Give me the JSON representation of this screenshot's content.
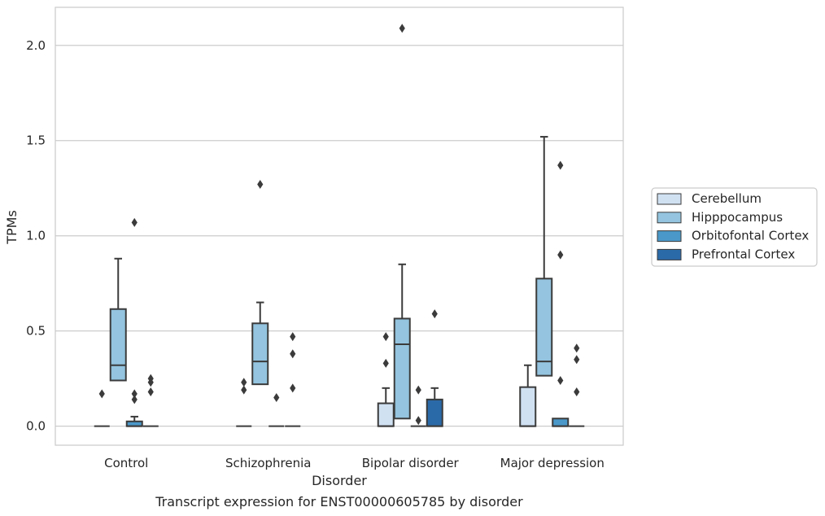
{
  "chart_data": {
    "type": "box",
    "caption": "Transcript expression for ENST00000605785 by disorder",
    "xlabel": "Disorder",
    "ylabel": "TPMs",
    "ylim": [
      -0.1,
      2.2
    ],
    "yticks": [
      0.0,
      0.5,
      1.0,
      1.5,
      2.0
    ],
    "ytick_labels": [
      "0.0",
      "0.5",
      "1.0",
      "1.5",
      "2.0"
    ],
    "grid": "horizontal",
    "legend_position": "right",
    "categories": [
      "Control",
      "Schizophrenia",
      "Bipolar disorder",
      "Major depression"
    ],
    "series": [
      {
        "name": "Cerebellum",
        "color": "#d0e1f2",
        "boxes": [
          {
            "q1": 0,
            "median": 0,
            "q3": 0,
            "whisker_low": 0,
            "whisker_high": 0,
            "outliers": [
              0.17
            ]
          },
          {
            "q1": 0,
            "median": 0,
            "q3": 0,
            "whisker_low": 0,
            "whisker_high": 0,
            "outliers": [
              0.23,
              0.19
            ]
          },
          {
            "q1": 0,
            "median": 0,
            "q3": 0.12,
            "whisker_low": 0,
            "whisker_high": 0.2,
            "outliers": [
              0.47,
              0.33
            ]
          },
          {
            "q1": 0,
            "median": 0,
            "q3": 0.205,
            "whisker_low": 0,
            "whisker_high": 0.32,
            "outliers": []
          }
        ]
      },
      {
        "name": "Hipppocampus",
        "color": "#94c4df",
        "boxes": [
          {
            "q1": 0.24,
            "median": 0.32,
            "q3": 0.615,
            "whisker_low": 0,
            "whisker_high": 0.88,
            "outliers": []
          },
          {
            "q1": 0.22,
            "median": 0.34,
            "q3": 0.54,
            "whisker_low": 0,
            "whisker_high": 0.65,
            "outliers": [
              1.27
            ]
          },
          {
            "q1": 0.04,
            "median": 0.43,
            "q3": 0.565,
            "whisker_low": 0,
            "whisker_high": 0.85,
            "outliers": [
              2.09
            ]
          },
          {
            "q1": 0.265,
            "median": 0.34,
            "q3": 0.775,
            "whisker_low": 0,
            "whisker_high": 1.52,
            "outliers": []
          }
        ]
      },
      {
        "name": "Orbitofontal Cortex",
        "color": "#4a98c9",
        "boxes": [
          {
            "q1": 0,
            "median": 0,
            "q3": 0.025,
            "whisker_low": 0,
            "whisker_high": 0.05,
            "outliers": [
              1.07,
              0.17,
              0.14
            ]
          },
          {
            "q1": 0,
            "median": 0,
            "q3": 0,
            "whisker_low": 0,
            "whisker_high": 0,
            "outliers": [
              0.15
            ]
          },
          {
            "q1": 0,
            "median": 0,
            "q3": 0,
            "whisker_low": 0,
            "whisker_high": 0,
            "outliers": [
              0.19,
              0.03
            ]
          },
          {
            "q1": 0,
            "median": 0,
            "q3": 0.04,
            "whisker_low": 0,
            "whisker_high": 0.04,
            "outliers": [
              1.37,
              0.9,
              0.24
            ]
          }
        ]
      },
      {
        "name": "Prefrontal Cortex",
        "color": "#2b6aa8",
        "boxes": [
          {
            "q1": 0,
            "median": 0,
            "q3": 0,
            "whisker_low": 0,
            "whisker_high": 0,
            "outliers": [
              0.25,
              0.23,
              0.18
            ]
          },
          {
            "q1": 0,
            "median": 0,
            "q3": 0,
            "whisker_low": 0,
            "whisker_high": 0,
            "outliers": [
              0.47,
              0.38,
              0.2
            ]
          },
          {
            "q1": 0,
            "median": 0,
            "q3": 0.14,
            "whisker_low": 0,
            "whisker_high": 0.2,
            "outliers": [
              0.59
            ]
          },
          {
            "q1": 0,
            "median": 0,
            "q3": 0,
            "whisker_low": 0,
            "whisker_high": 0,
            "outliers": [
              0.41,
              0.35,
              0.18
            ]
          }
        ]
      }
    ]
  }
}
